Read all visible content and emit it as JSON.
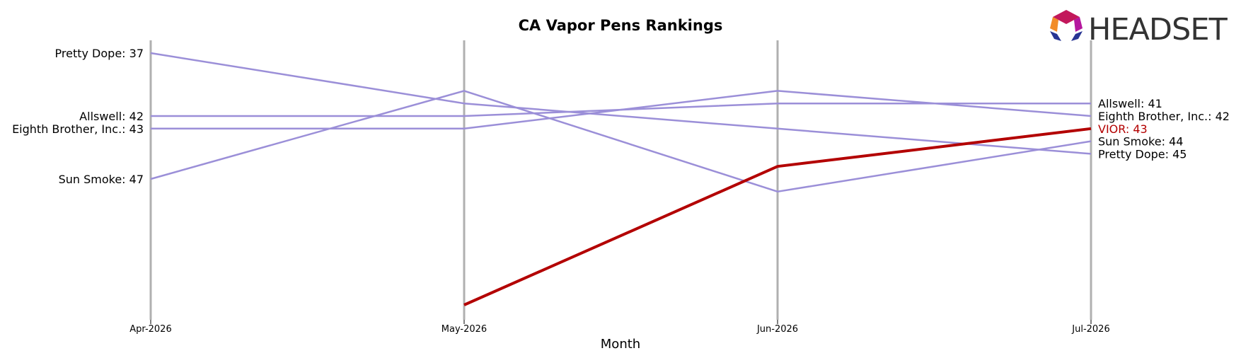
{
  "chart_data": {
    "type": "line",
    "title": "CA Vapor Pens Rankings",
    "xlabel": "Month",
    "ylabel": "",
    "categories": [
      "Apr-2026",
      "May-2026",
      "Jun-2026",
      "Jul-2026"
    ],
    "y_inverted": true,
    "ylim": [
      37,
      52
    ],
    "grid": false,
    "series": [
      {
        "name": "Pretty Dope",
        "values": [
          37,
          41,
          43,
          45
        ],
        "color": "#9b8fd8",
        "highlight": false
      },
      {
        "name": "Allswell",
        "values": [
          42,
          42,
          41,
          41
        ],
        "color": "#9b8fd8",
        "highlight": false
      },
      {
        "name": "Eighth Brother, Inc.",
        "values": [
          43,
          43,
          40,
          42
        ],
        "color": "#9b8fd8",
        "highlight": false
      },
      {
        "name": "Sun Smoke",
        "values": [
          47,
          40,
          48,
          44
        ],
        "color": "#9b8fd8",
        "highlight": false
      },
      {
        "name": "VIOR",
        "values": [
          null,
          57,
          46,
          43
        ],
        "color": "#b30000",
        "highlight": true
      }
    ],
    "left_labels": [
      {
        "text": "Pretty Dope: 37",
        "value": 37
      },
      {
        "text": "Allswell: 42",
        "value": 42
      },
      {
        "text": "Eighth Brother, Inc.: 43",
        "value": 43
      },
      {
        "text": "Sun Smoke: 47",
        "value": 47
      }
    ],
    "right_labels": [
      {
        "text": "Allswell: 41",
        "value": 41,
        "color": "#000000"
      },
      {
        "text": "Eighth Brother, Inc.: 42",
        "value": 42,
        "color": "#000000"
      },
      {
        "text": "VIOR: 43",
        "value": 43,
        "color": "#b30000"
      },
      {
        "text": "Sun Smoke: 44",
        "value": 44,
        "color": "#000000"
      },
      {
        "text": "Pretty Dope: 45",
        "value": 45,
        "color": "#000000"
      }
    ]
  },
  "logo": {
    "text": "HEADSET"
  },
  "colors": {
    "gridline": "#b0b0b0",
    "series_default": "#9b8fd8",
    "highlight": "#b30000"
  },
  "icons": {
    "logo_mark": "headset-hexagon-logo-icon"
  }
}
